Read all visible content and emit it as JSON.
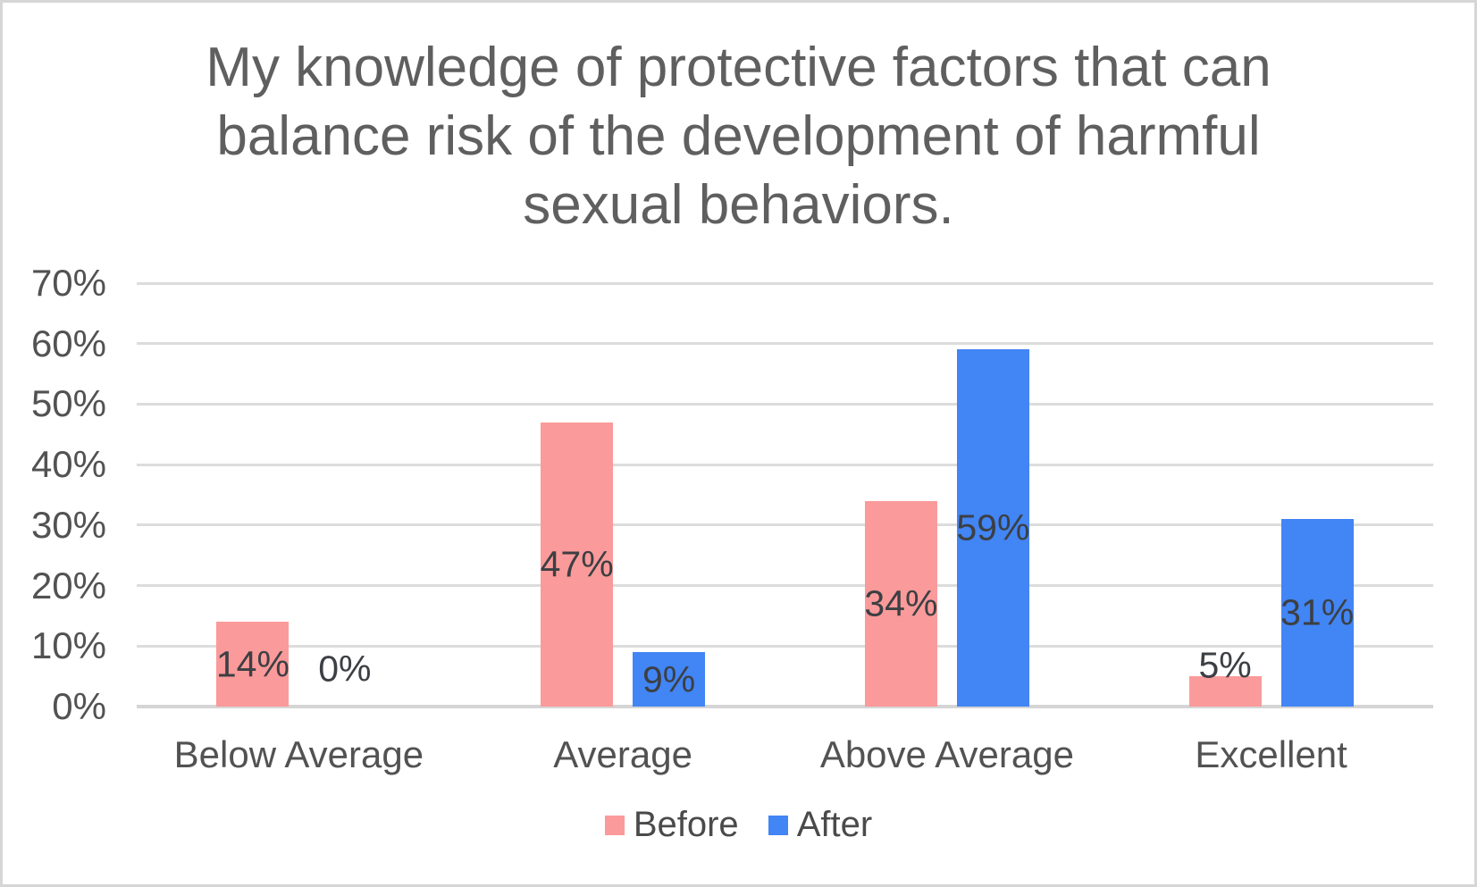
{
  "chart_data": {
    "type": "bar",
    "title": "My knowledge of protective factors that can balance risk of the development of harmful sexual behaviors.",
    "title_lines": [
      "My knowledge of protective factors that can",
      "balance risk of the development of harmful",
      "sexual behaviors."
    ],
    "categories": [
      "Below Average",
      "Average",
      "Above Average",
      "Excellent"
    ],
    "series": [
      {
        "name": "Before",
        "color": "#FB9A9A",
        "values": [
          14,
          47,
          34,
          5
        ]
      },
      {
        "name": "After",
        "color": "#4285F4",
        "values": [
          0,
          9,
          59,
          31
        ]
      }
    ],
    "data_labels": {
      "Before": [
        "14%",
        "47%",
        "34%",
        "5%"
      ],
      "After": [
        "0%",
        "9%",
        "59%",
        "31%"
      ]
    },
    "value_suffix": "%",
    "y_axis": {
      "min": 0,
      "max": 70,
      "step": 10,
      "tick_labels": [
        "70%",
        "60%",
        "50%",
        "40%",
        "30%",
        "20%",
        "10%",
        "0%"
      ]
    },
    "xlabel": "",
    "ylabel": "",
    "grid": true,
    "legend_position": "bottom",
    "colors": {
      "before_bar": "#FB9A9A",
      "after_bar": "#4285F4",
      "gridline": "#dcdcdc",
      "baseline": "#d5d5d5",
      "title_text": "#5f5f5f",
      "axis_text": "#525252",
      "data_label_text": "#3c3f43",
      "legend_text": "#4a4a4a",
      "border": "#d6d6d6",
      "background": "#ffffff"
    }
  }
}
